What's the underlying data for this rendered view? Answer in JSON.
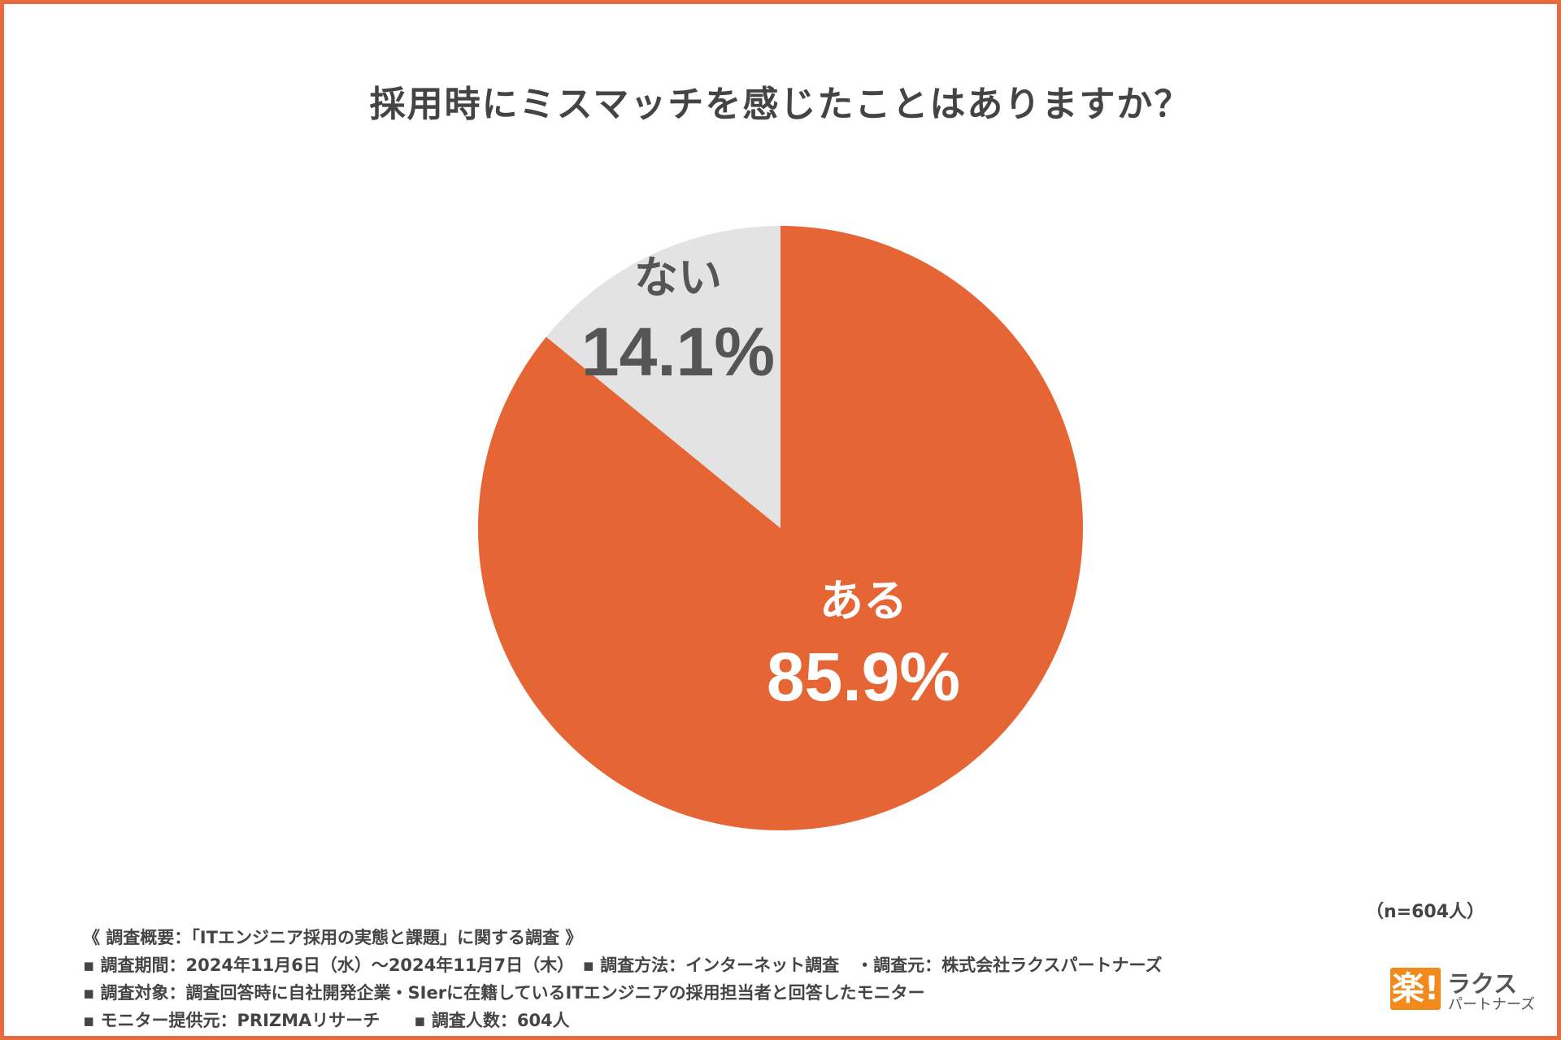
{
  "title": "採用時にミスマッチを感じたことはありますか？",
  "chart_data": {
    "type": "pie",
    "title": "採用時にミスマッチを感じたことはありますか？",
    "slices": [
      {
        "label": "ある",
        "value": 85.9,
        "value_label": "85.9%",
        "color": "#e66535",
        "label_color": "#ffffff"
      },
      {
        "label": "ない",
        "value": 14.1,
        "value_label": "14.1%",
        "color": "#e3e3e3",
        "label_color": "#555555"
      }
    ]
  },
  "sample_size": "（n=604人）",
  "notes": [
    "《 調査概要：「ITエンジニア採用の実態と課題」に関する調査 》",
    "▪ 調査期間：2024年11月6日（水）〜2024年11月7日（木）　▪ 調査方法：インターネット調査　・調査元：株式会社ラクスパートナーズ",
    "▪ 調査対象：調査回答時に自社開発企業・SIerに在籍しているITエンジニアの採用担当者と回答したモニター",
    "▪ モニター提供元：PRIZMAリサーチ　　▪ 調査人数：604人"
  ],
  "logo": {
    "mark": "楽!",
    "name": "ラクス",
    "sub": "パートナーズ"
  },
  "colors": {
    "frame": "#e86a3d",
    "accent": "#e66535",
    "gray": "#e3e3e3"
  }
}
